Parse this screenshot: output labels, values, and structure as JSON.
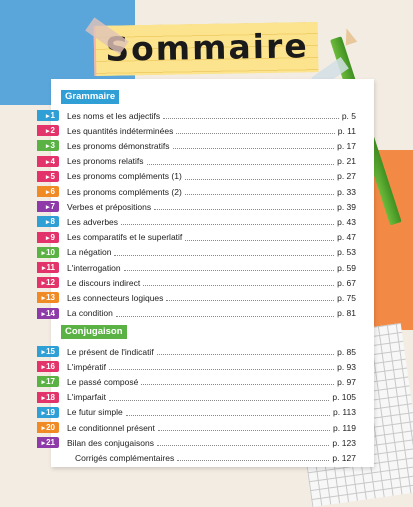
{
  "title": "Sommaire",
  "sections": {
    "grammaire": "Grammaire",
    "conjugaison": "Conjugaison"
  },
  "grammar_items": [
    {
      "num": "1",
      "label": "Les noms et les adjectifs",
      "page": "p. 5",
      "color": "#2f9fd6"
    },
    {
      "num": "2",
      "label": "Les quantités indéterminées",
      "page": "p. 11",
      "color": "#e2336b"
    },
    {
      "num": "3",
      "label": "Les pronoms démonstratifs",
      "page": "p. 17",
      "color": "#5bb244"
    },
    {
      "num": "4",
      "label": "Les pronoms relatifs",
      "page": "p. 21",
      "color": "#e2336b"
    },
    {
      "num": "5",
      "label": "Les pronoms compléments (1)",
      "page": "p. 27",
      "color": "#e2336b"
    },
    {
      "num": "6",
      "label": "Les pronoms compléments (2)",
      "page": "p. 33",
      "color": "#f08a24"
    },
    {
      "num": "7",
      "label": "Verbes et prépositions",
      "page": "p. 39",
      "color": "#8e3aa8"
    },
    {
      "num": "8",
      "label": "Les adverbes",
      "page": "p. 43",
      "color": "#2f9fd6"
    },
    {
      "num": "9",
      "label": "Les comparatifs et le superlatif",
      "page": "p. 47",
      "color": "#e2336b"
    },
    {
      "num": "10",
      "label": "La négation",
      "page": "p. 53",
      "color": "#5bb244"
    },
    {
      "num": "11",
      "label": "L'interrogation",
      "page": "p. 59",
      "color": "#e2336b"
    },
    {
      "num": "12",
      "label": "Le discours indirect",
      "page": "p. 67",
      "color": "#e2336b"
    },
    {
      "num": "13",
      "label": "Les connecteurs logiques",
      "page": "p. 75",
      "color": "#f08a24"
    },
    {
      "num": "14",
      "label": "La condition",
      "page": "p. 81",
      "color": "#8e3aa8"
    }
  ],
  "conjugation_items": [
    {
      "num": "15",
      "label": "Le présent de l'indicatif",
      "page": "p. 85",
      "color": "#2f9fd6"
    },
    {
      "num": "16",
      "label": "L'impératif",
      "page": "p. 93",
      "color": "#e2336b"
    },
    {
      "num": "17",
      "label": "Le passé composé",
      "page": "p. 97",
      "color": "#5bb244"
    },
    {
      "num": "18",
      "label": "L'imparfait",
      "page": "p. 105",
      "color": "#e2336b"
    },
    {
      "num": "19",
      "label": "Le futur simple",
      "page": "p. 113",
      "color": "#2f9fd6"
    },
    {
      "num": "20",
      "label": "Le conditionnel présent",
      "page": "p. 119",
      "color": "#f08a24"
    },
    {
      "num": "21",
      "label": "Bilan des conjugaisons",
      "page": "p. 123",
      "color": "#8e3aa8"
    }
  ],
  "extra_item": {
    "label": "Corrigés complémentaires",
    "page": "p. 127"
  }
}
